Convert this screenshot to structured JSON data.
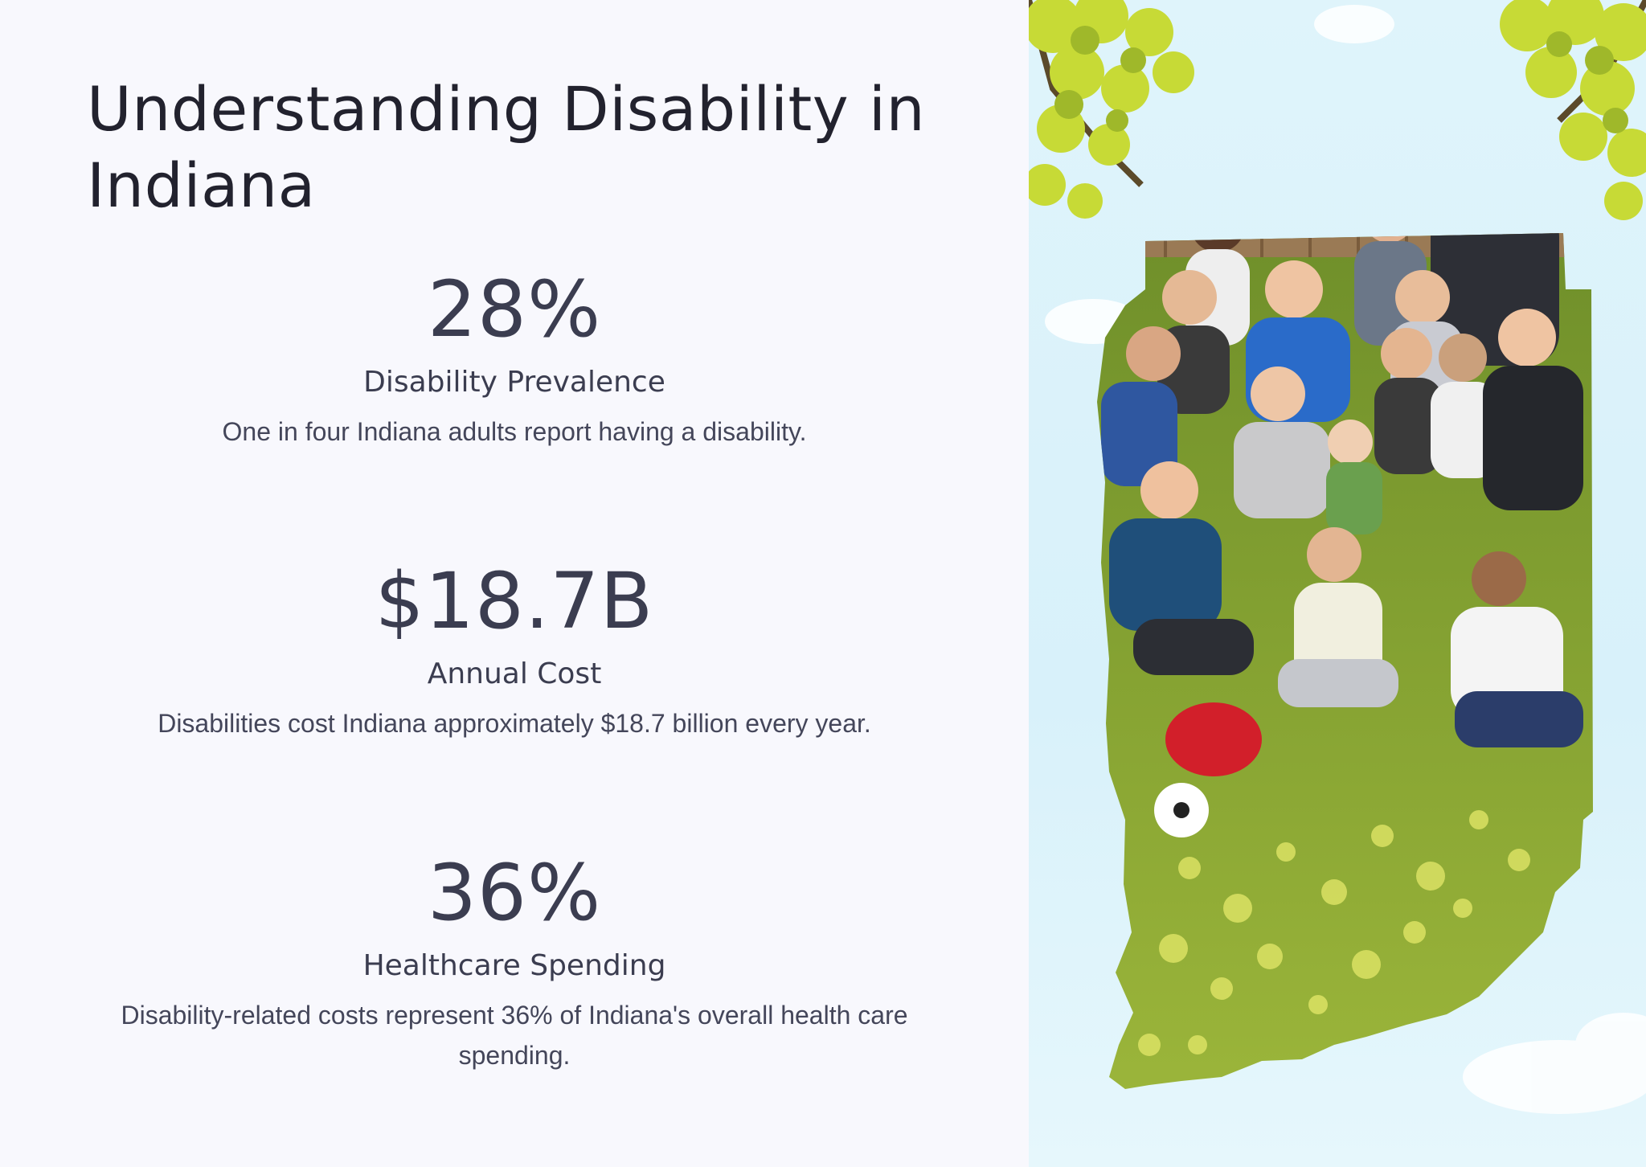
{
  "title": "Understanding Disability in Indiana",
  "stats": [
    {
      "value": "28%",
      "label": "Disability Prevalence",
      "description": "One in four Indiana adults report having a disability."
    },
    {
      "value": "$18.7B",
      "label": "Annual Cost",
      "description": "Disabilities cost Indiana approximately $18.7 billion every year."
    },
    {
      "value": "36%",
      "label": "Healthcare Spending",
      "description": "Disability-related costs represent 36% of Indiana's overall health care spending."
    }
  ],
  "colors": {
    "background": "#f8f8fd",
    "title": "#22222e",
    "text": "#3b3d50",
    "sky": "#dff4fb",
    "grass": "#7e9a2e",
    "leaves": "#c9dc3a"
  }
}
